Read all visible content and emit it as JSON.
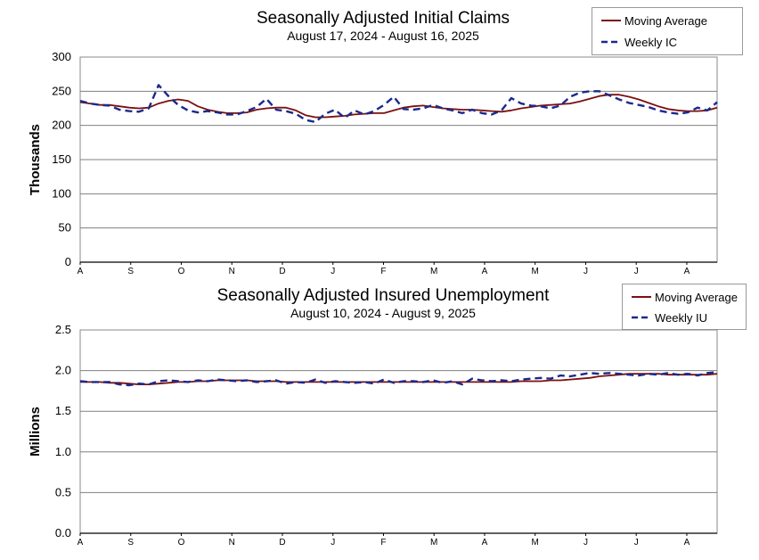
{
  "chart_data": [
    {
      "type": "line",
      "title": "Seasonally Adjusted Initial Claims",
      "subtitle": "August 17, 2024 - August 16, 2025",
      "ylabel": "Thousands",
      "ylim": [
        0,
        300
      ],
      "yticks": [
        "0",
        "50",
        "100",
        "150",
        "200",
        "250",
        "300"
      ],
      "month_labels": [
        "A",
        "S",
        "O",
        "N",
        "D",
        "J",
        "F",
        "M",
        "A",
        "M",
        "J",
        "J",
        "A"
      ],
      "grid": true,
      "legend_placement": "top-right",
      "series": [
        {
          "name": "Moving Average",
          "color": "#7b1010",
          "style": "solid",
          "values": [
            234,
            232,
            230,
            230,
            228,
            226,
            225,
            226,
            232,
            236,
            238,
            236,
            228,
            223,
            220,
            218,
            218,
            219,
            223,
            225,
            226,
            226,
            222,
            215,
            212,
            212,
            213,
            214,
            216,
            217,
            218,
            218,
            222,
            226,
            228,
            229,
            227,
            225,
            224,
            223,
            223,
            222,
            221,
            220,
            222,
            225,
            227,
            229,
            230,
            231,
            232,
            235,
            239,
            243,
            245,
            245,
            242,
            238,
            233,
            228,
            224,
            222,
            221,
            221,
            222,
            226
          ]
        },
        {
          "name": "Weekly IC",
          "color": "#1a2a8c",
          "style": "dashed",
          "values": [
            236,
            232,
            230,
            229,
            223,
            221,
            220,
            225,
            259,
            243,
            230,
            222,
            219,
            221,
            219,
            216,
            216,
            221,
            227,
            239,
            223,
            221,
            217,
            208,
            205,
            217,
            223,
            211,
            222,
            216,
            221,
            230,
            242,
            224,
            223,
            225,
            230,
            225,
            222,
            218,
            223,
            218,
            216,
            222,
            240,
            232,
            229,
            228,
            225,
            229,
            242,
            248,
            250,
            250,
            244,
            238,
            233,
            230,
            227,
            222,
            219,
            217,
            219,
            226,
            222,
            234
          ]
        }
      ]
    },
    {
      "type": "line",
      "title": "Seasonally Adjusted Insured Unemployment",
      "subtitle": "August 10, 2024 - August 9, 2025",
      "ylabel": "Millions",
      "ylim": [
        0,
        2.5
      ],
      "yticks": [
        "0.0",
        "0.5",
        "1.0",
        "1.5",
        "2.0",
        "2.5"
      ],
      "month_labels": [
        "A",
        "S",
        "O",
        "N",
        "D",
        "J",
        "F",
        "M",
        "A",
        "M",
        "J",
        "J",
        "A"
      ],
      "grid": true,
      "legend_placement": "top-right",
      "series": [
        {
          "name": "Moving Average",
          "color": "#7b1010",
          "style": "solid",
          "values": [
            1.86,
            1.86,
            1.86,
            1.85,
            1.85,
            1.84,
            1.83,
            1.83,
            1.84,
            1.85,
            1.86,
            1.86,
            1.87,
            1.87,
            1.88,
            1.88,
            1.88,
            1.88,
            1.87,
            1.87,
            1.87,
            1.86,
            1.86,
            1.86,
            1.86,
            1.86,
            1.86,
            1.86,
            1.86,
            1.86,
            1.86,
            1.86,
            1.86,
            1.86,
            1.86,
            1.86,
            1.86,
            1.86,
            1.86,
            1.86,
            1.86,
            1.86,
            1.86,
            1.86,
            1.86,
            1.87,
            1.87,
            1.87,
            1.88,
            1.88,
            1.89,
            1.9,
            1.91,
            1.93,
            1.94,
            1.95,
            1.96,
            1.96,
            1.96,
            1.96,
            1.95,
            1.95,
            1.95,
            1.95,
            1.95,
            1.96
          ]
        },
        {
          "name": "Weekly IU",
          "color": "#1a2a8c",
          "style": "dashed",
          "values": [
            1.87,
            1.86,
            1.86,
            1.86,
            1.83,
            1.82,
            1.84,
            1.83,
            1.87,
            1.88,
            1.87,
            1.86,
            1.88,
            1.87,
            1.89,
            1.88,
            1.87,
            1.88,
            1.86,
            1.87,
            1.88,
            1.84,
            1.86,
            1.85,
            1.89,
            1.85,
            1.87,
            1.86,
            1.85,
            1.86,
            1.84,
            1.89,
            1.85,
            1.87,
            1.87,
            1.86,
            1.88,
            1.85,
            1.87,
            1.83,
            1.9,
            1.88,
            1.87,
            1.88,
            1.87,
            1.89,
            1.9,
            1.91,
            1.9,
            1.94,
            1.93,
            1.95,
            1.97,
            1.96,
            1.97,
            1.96,
            1.95,
            1.94,
            1.96,
            1.95,
            1.97,
            1.95,
            1.96,
            1.94,
            1.97,
            1.98
          ]
        }
      ]
    }
  ]
}
